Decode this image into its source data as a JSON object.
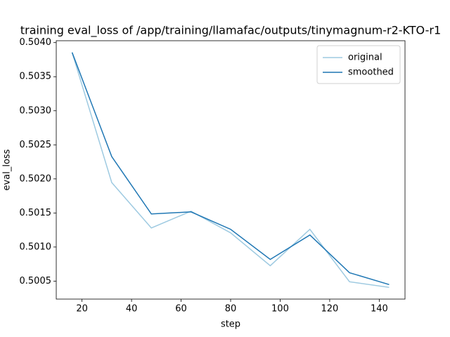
{
  "chart_data": {
    "type": "line",
    "title": "training eval_loss of /app/training/llamafac/outputs/tinymagnum-r2-KTO-r1",
    "x_label": "step",
    "y_label": "eval_loss",
    "x": [
      16,
      32,
      48,
      64,
      80,
      96,
      112,
      128,
      144
    ],
    "series": [
      {
        "name": "original",
        "color": "#9ecae1",
        "values": [
          0.503856,
          0.501947,
          0.50128,
          0.501526,
          0.501208,
          0.500726,
          0.50126,
          0.50049,
          0.500408
        ]
      },
      {
        "name": "smoothed",
        "color": "#1f77b4",
        "values": [
          0.503856,
          0.502327,
          0.501485,
          0.501516,
          0.50126,
          0.500818,
          0.501177,
          0.500623,
          0.500449
        ]
      }
    ],
    "xlim": [
      9.6,
      150.4
    ],
    "xticks": [
      20,
      40,
      60,
      80,
      100,
      120,
      140
    ],
    "ylim": [
      0.500236,
      0.504028
    ],
    "yticks": [
      {
        "value": 0.5005,
        "label": "0.5005"
      },
      {
        "value": 0.501,
        "label": "0.5010"
      },
      {
        "value": 0.5015,
        "label": "0.5015"
      },
      {
        "value": 0.502,
        "label": "0.5020"
      },
      {
        "value": 0.5025,
        "label": "0.5025"
      },
      {
        "value": 0.503,
        "label": "0.5030"
      },
      {
        "value": 0.5035,
        "label": "0.5035"
      },
      {
        "value": 0.504,
        "label": "0.5040"
      }
    ],
    "legend": "upper right",
    "grid": false
  }
}
